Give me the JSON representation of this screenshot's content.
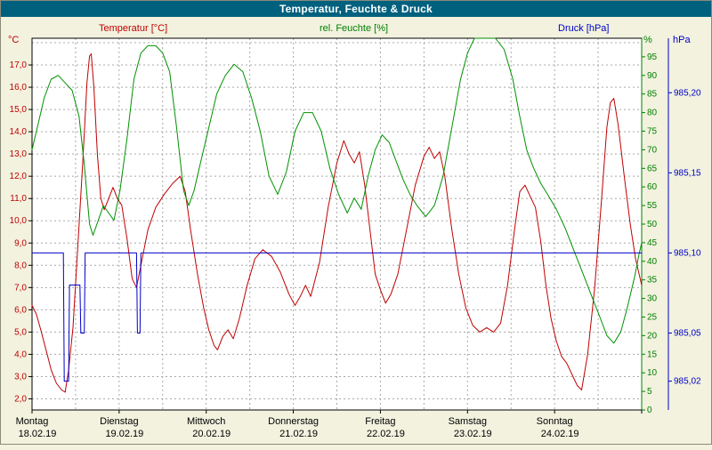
{
  "window": {
    "title": "Temperatur, Feuchte & Druck"
  },
  "legend": {
    "temperature": "Temperatur [°C]",
    "humidity": "rel. Feuchte [%]",
    "pressure": "Druck [hPa]"
  },
  "chart_data": {
    "type": "line",
    "title": "Temperatur, Feuchte & Druck",
    "x_axis": {
      "unit": "day",
      "range": [
        0,
        7
      ],
      "days": [
        {
          "label": "Montag",
          "date": "18.02.19"
        },
        {
          "label": "Dienstag",
          "date": "19.02.19"
        },
        {
          "label": "Mittwoch",
          "date": "20.02.19"
        },
        {
          "label": "Donnerstag",
          "date": "21.02.19"
        },
        {
          "label": "Freitag",
          "date": "22.02.19"
        },
        {
          "label": "Samstag",
          "date": "23.02.19"
        },
        {
          "label": "Sonntag",
          "date": "24.02.19"
        }
      ]
    },
    "axes": {
      "temperature": {
        "title": "Temperatur [°C]",
        "unit": "°C",
        "color": "#c00000",
        "plot_min": 1.5,
        "plot_max": 18.2,
        "ticks": [
          {
            "v": 2,
            "label": "2,0"
          },
          {
            "v": 3,
            "label": "3,0"
          },
          {
            "v": 4,
            "label": "4,0"
          },
          {
            "v": 5,
            "label": "5,0"
          },
          {
            "v": 6,
            "label": "6,0"
          },
          {
            "v": 7,
            "label": "7,0"
          },
          {
            "v": 8,
            "label": "8,0"
          },
          {
            "v": 9,
            "label": "9,0"
          },
          {
            "v": 10,
            "label": "10,0"
          },
          {
            "v": 11,
            "label": "11,0"
          },
          {
            "v": 12,
            "label": "12,0"
          },
          {
            "v": 13,
            "label": "13,0"
          },
          {
            "v": 14,
            "label": "14,0"
          },
          {
            "v": 15,
            "label": "15,0"
          },
          {
            "v": 16,
            "label": "16,0"
          },
          {
            "v": 17,
            "label": "17,0"
          }
        ]
      },
      "humidity": {
        "title": "rel. Feuchte [%]",
        "unit": "%",
        "color": "#008000",
        "plot_min": 0,
        "plot_max": 100,
        "ticks": [
          {
            "v": 0,
            "label": "0"
          },
          {
            "v": 5,
            "label": "5"
          },
          {
            "v": 10,
            "label": "10"
          },
          {
            "v": 15,
            "label": "15"
          },
          {
            "v": 20,
            "label": "20"
          },
          {
            "v": 25,
            "label": "25"
          },
          {
            "v": 30,
            "label": "30"
          },
          {
            "v": 35,
            "label": "35"
          },
          {
            "v": 40,
            "label": "40"
          },
          {
            "v": 45,
            "label": "45"
          },
          {
            "v": 50,
            "label": "50"
          },
          {
            "v": 55,
            "label": "55"
          },
          {
            "v": 60,
            "label": "60"
          },
          {
            "v": 65,
            "label": "65"
          },
          {
            "v": 70,
            "label": "70"
          },
          {
            "v": 75,
            "label": "75"
          },
          {
            "v": 80,
            "label": "80"
          },
          {
            "v": 85,
            "label": "85"
          },
          {
            "v": 90,
            "label": "90"
          },
          {
            "v": 95,
            "label": "95"
          }
        ]
      },
      "pressure": {
        "title": "Druck [hPa]",
        "unit": "hPa",
        "color": "#0000c8",
        "plot_min": 985.002,
        "plot_max": 985.234,
        "ticks": [
          {
            "v": 985.2,
            "label": "985,20"
          },
          {
            "v": 985.15,
            "label": "985,15"
          },
          {
            "v": 985.1,
            "label": "985,10"
          },
          {
            "v": 985.05,
            "label": "985,05"
          },
          {
            "v": 985.02,
            "label": "985,02"
          }
        ]
      }
    },
    "series": [
      {
        "name": "Temperatur",
        "axis": "temperature",
        "color": "#c00000",
        "points": [
          [
            0,
            6.2
          ],
          [
            0.05,
            5.8
          ],
          [
            0.1,
            5.1
          ],
          [
            0.16,
            4.2
          ],
          [
            0.22,
            3.3
          ],
          [
            0.28,
            2.7
          ],
          [
            0.34,
            2.4
          ],
          [
            0.38,
            2.3
          ],
          [
            0.42,
            3.3
          ],
          [
            0.47,
            5.2
          ],
          [
            0.52,
            8.5
          ],
          [
            0.58,
            12.5
          ],
          [
            0.63,
            16.2
          ],
          [
            0.66,
            17.4
          ],
          [
            0.68,
            17.5
          ],
          [
            0.71,
            16.0
          ],
          [
            0.75,
            13.0
          ],
          [
            0.79,
            11.0
          ],
          [
            0.83,
            10.5
          ],
          [
            0.88,
            11.0
          ],
          [
            0.93,
            11.5
          ],
          [
            0.98,
            11.0
          ],
          [
            1.03,
            10.7
          ],
          [
            1.09,
            9.2
          ],
          [
            1.15,
            7.4
          ],
          [
            1.2,
            7.0
          ],
          [
            1.26,
            8.2
          ],
          [
            1.33,
            9.6
          ],
          [
            1.42,
            10.6
          ],
          [
            1.52,
            11.2
          ],
          [
            1.62,
            11.7
          ],
          [
            1.7,
            12.0
          ],
          [
            1.76,
            11.3
          ],
          [
            1.82,
            9.6
          ],
          [
            1.9,
            7.6
          ],
          [
            1.97,
            6.1
          ],
          [
            2.03,
            5.1
          ],
          [
            2.09,
            4.4
          ],
          [
            2.13,
            4.2
          ],
          [
            2.19,
            4.8
          ],
          [
            2.25,
            5.1
          ],
          [
            2.31,
            4.7
          ],
          [
            2.38,
            5.6
          ],
          [
            2.47,
            7.1
          ],
          [
            2.56,
            8.3
          ],
          [
            2.65,
            8.7
          ],
          [
            2.75,
            8.4
          ],
          [
            2.85,
            7.7
          ],
          [
            2.95,
            6.7
          ],
          [
            3.02,
            6.2
          ],
          [
            3.08,
            6.6
          ],
          [
            3.14,
            7.1
          ],
          [
            3.2,
            6.6
          ],
          [
            3.3,
            8.1
          ],
          [
            3.4,
            10.6
          ],
          [
            3.5,
            12.6
          ],
          [
            3.58,
            13.6
          ],
          [
            3.64,
            13.0
          ],
          [
            3.7,
            12.6
          ],
          [
            3.76,
            13.1
          ],
          [
            3.82,
            11.6
          ],
          [
            3.88,
            9.6
          ],
          [
            3.94,
            7.6
          ],
          [
            4.0,
            6.9
          ],
          [
            4.06,
            6.3
          ],
          [
            4.12,
            6.7
          ],
          [
            4.2,
            7.6
          ],
          [
            4.3,
            9.6
          ],
          [
            4.4,
            11.6
          ],
          [
            4.5,
            12.9
          ],
          [
            4.56,
            13.3
          ],
          [
            4.62,
            12.8
          ],
          [
            4.68,
            13.1
          ],
          [
            4.74,
            12.0
          ],
          [
            4.82,
            9.6
          ],
          [
            4.9,
            7.6
          ],
          [
            4.98,
            6.1
          ],
          [
            5.06,
            5.3
          ],
          [
            5.14,
            5.0
          ],
          [
            5.22,
            5.2
          ],
          [
            5.3,
            5.0
          ],
          [
            5.38,
            5.4
          ],
          [
            5.46,
            7.1
          ],
          [
            5.54,
            9.6
          ],
          [
            5.6,
            11.3
          ],
          [
            5.66,
            11.6
          ],
          [
            5.72,
            11.1
          ],
          [
            5.78,
            10.6
          ],
          [
            5.84,
            9.1
          ],
          [
            5.9,
            7.1
          ],
          [
            5.96,
            5.6
          ],
          [
            6.02,
            4.6
          ],
          [
            6.08,
            3.9
          ],
          [
            6.14,
            3.6
          ],
          [
            6.2,
            3.1
          ],
          [
            6.26,
            2.6
          ],
          [
            6.31,
            2.4
          ],
          [
            6.38,
            4.0
          ],
          [
            6.46,
            7.0
          ],
          [
            6.54,
            11.0
          ],
          [
            6.6,
            14.2
          ],
          [
            6.64,
            15.3
          ],
          [
            6.68,
            15.5
          ],
          [
            6.73,
            14.3
          ],
          [
            6.8,
            12.0
          ],
          [
            6.87,
            9.8
          ],
          [
            6.93,
            8.3
          ],
          [
            7,
            7.1
          ]
        ]
      },
      {
        "name": "rel. Feuchte",
        "axis": "humidity",
        "color": "#009100",
        "points": [
          [
            0,
            70
          ],
          [
            0.07,
            77
          ],
          [
            0.14,
            84
          ],
          [
            0.22,
            89
          ],
          [
            0.3,
            90
          ],
          [
            0.38,
            88
          ],
          [
            0.46,
            86
          ],
          [
            0.54,
            79
          ],
          [
            0.6,
            66
          ],
          [
            0.66,
            50
          ],
          [
            0.7,
            47
          ],
          [
            0.76,
            51
          ],
          [
            0.82,
            55
          ],
          [
            0.88,
            53
          ],
          [
            0.94,
            51
          ],
          [
            1.01,
            59
          ],
          [
            1.09,
            73
          ],
          [
            1.17,
            89
          ],
          [
            1.25,
            96
          ],
          [
            1.33,
            98
          ],
          [
            1.42,
            98
          ],
          [
            1.5,
            96
          ],
          [
            1.58,
            91
          ],
          [
            1.66,
            76
          ],
          [
            1.74,
            59
          ],
          [
            1.8,
            55
          ],
          [
            1.86,
            59
          ],
          [
            1.94,
            67
          ],
          [
            2.02,
            75
          ],
          [
            2.12,
            85
          ],
          [
            2.22,
            90
          ],
          [
            2.32,
            93
          ],
          [
            2.42,
            91
          ],
          [
            2.52,
            84
          ],
          [
            2.62,
            75
          ],
          [
            2.72,
            63
          ],
          [
            2.82,
            58
          ],
          [
            2.92,
            64
          ],
          [
            3.02,
            75
          ],
          [
            3.12,
            80
          ],
          [
            3.22,
            80
          ],
          [
            3.32,
            75
          ],
          [
            3.42,
            65
          ],
          [
            3.52,
            58
          ],
          [
            3.62,
            53
          ],
          [
            3.7,
            57
          ],
          [
            3.78,
            54
          ],
          [
            3.86,
            63
          ],
          [
            3.94,
            70
          ],
          [
            4.02,
            74
          ],
          [
            4.1,
            72
          ],
          [
            4.18,
            67
          ],
          [
            4.26,
            62
          ],
          [
            4.34,
            58
          ],
          [
            4.42,
            55
          ],
          [
            4.52,
            52
          ],
          [
            4.62,
            55
          ],
          [
            4.72,
            63
          ],
          [
            4.82,
            76
          ],
          [
            4.92,
            89
          ],
          [
            5.0,
            96
          ],
          [
            5.08,
            100
          ],
          [
            5.2,
            100
          ],
          [
            5.32,
            100
          ],
          [
            5.42,
            97
          ],
          [
            5.52,
            89
          ],
          [
            5.6,
            79
          ],
          [
            5.68,
            70
          ],
          [
            5.76,
            65
          ],
          [
            5.84,
            61
          ],
          [
            5.92,
            58
          ],
          [
            6.02,
            54
          ],
          [
            6.12,
            49
          ],
          [
            6.22,
            43
          ],
          [
            6.32,
            37
          ],
          [
            6.42,
            31
          ],
          [
            6.52,
            25
          ],
          [
            6.6,
            20
          ],
          [
            6.68,
            18
          ],
          [
            6.76,
            21
          ],
          [
            6.84,
            28
          ],
          [
            6.92,
            36
          ],
          [
            6.97,
            42
          ],
          [
            7,
            45
          ]
        ]
      },
      {
        "name": "Druck",
        "axis": "pressure",
        "color": "#0000c8",
        "points": [
          [
            0,
            985.1
          ],
          [
            0.36,
            985.1
          ],
          [
            0.37,
            985.02
          ],
          [
            0.42,
            985.02
          ],
          [
            0.43,
            985.08
          ],
          [
            0.55,
            985.08
          ],
          [
            0.56,
            985.05
          ],
          [
            0.6,
            985.05
          ],
          [
            0.61,
            985.1
          ],
          [
            1.2,
            985.1
          ],
          [
            1.21,
            985.05
          ],
          [
            1.24,
            985.05
          ],
          [
            1.25,
            985.1
          ],
          [
            7,
            985.1
          ]
        ]
      }
    ],
    "grid": {
      "horizontal_step_c": 1,
      "vertical_step_days": 0.5,
      "style": "dashed"
    }
  },
  "colors": {
    "titlebar_bg": "#00617e",
    "background": "#f2f2df",
    "plot_bg": "#ffffff",
    "grid": "#a8a8a8",
    "temperature": "#c00000",
    "humidity": "#008000",
    "pressure": "#0000c8"
  }
}
